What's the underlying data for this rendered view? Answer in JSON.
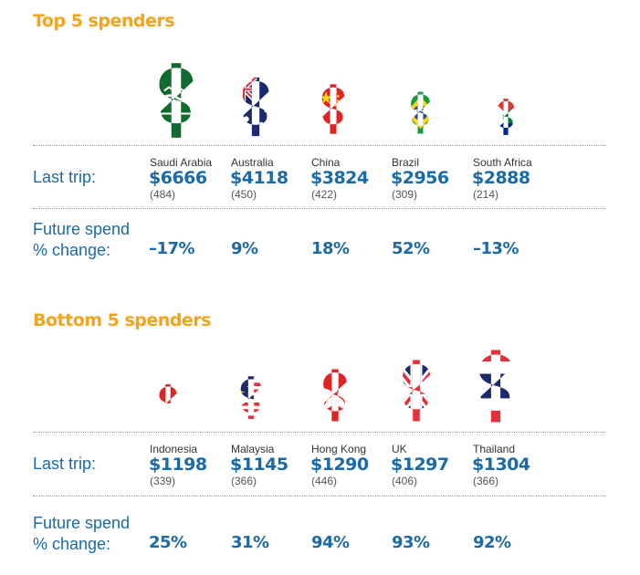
{
  "chart_data": [
    {
      "type": "table",
      "title": "Top 5 spenders",
      "row_labels": {
        "last_trip": "Last trip:",
        "future_line1": "Future spend",
        "future_line2": "% change:"
      },
      "items": [
        {
          "country": "Saudi Arabia",
          "amount": "$6666",
          "value": 6666,
          "count": "(484)",
          "change": "–17%",
          "flag_icon": "saudi-arabia-flag-dollar-icon",
          "colors": [
            "#0f6b2e",
            "#ffffff"
          ]
        },
        {
          "country": "Australia",
          "amount": "$4118",
          "value": 4118,
          "count": "(450)",
          "change": "9%",
          "flag_icon": "australia-flag-dollar-icon",
          "colors": [
            "#1a2a6c",
            "#e0313c",
            "#ffffff"
          ]
        },
        {
          "country": "China",
          "amount": "$3824",
          "value": 3824,
          "count": "(422)",
          "change": "18%",
          "flag_icon": "china-flag-dollar-icon",
          "colors": [
            "#e02424",
            "#ffde00"
          ]
        },
        {
          "country": "Brazil",
          "amount": "$2956",
          "value": 2956,
          "count": "(309)",
          "change": "52%",
          "flag_icon": "brazil-flag-dollar-icon",
          "colors": [
            "#179b3c",
            "#ffd21f",
            "#2c4e9e"
          ]
        },
        {
          "country": "South Africa",
          "amount": "$2888",
          "value": 2888,
          "count": "(214)",
          "change": "–13%",
          "flag_icon": "south-africa-flag-dollar-icon",
          "colors": [
            "#007a3d",
            "#de3831",
            "#002395",
            "#ffb612",
            "#000000"
          ]
        }
      ]
    },
    {
      "type": "table",
      "title": "Bottom 5 spenders",
      "row_labels": {
        "last_trip": "Last trip:",
        "future_line1": "Future spend",
        "future_line2": "% change:"
      },
      "items": [
        {
          "country": "Indonesia",
          "amount": "$1198",
          "value": 1198,
          "count": "(339)",
          "change": "25%",
          "flag_icon": "indonesia-flag-dollar-icon",
          "colors": [
            "#e02424",
            "#ffffff"
          ]
        },
        {
          "country": "Malaysia",
          "amount": "$1145",
          "value": 1145,
          "count": "(366)",
          "change": "31%",
          "flag_icon": "malaysia-flag-dollar-icon",
          "colors": [
            "#1a2a6c",
            "#e0313c",
            "#ffd21f",
            "#ffffff"
          ]
        },
        {
          "country": "Hong Kong",
          "amount": "$1290",
          "value": 1290,
          "count": "(446)",
          "change": "94%",
          "flag_icon": "hong-kong-flag-dollar-icon",
          "colors": [
            "#e02424",
            "#ffffff"
          ]
        },
        {
          "country": "UK",
          "amount": "$1297",
          "value": 1297,
          "count": "(406)",
          "change": "93%",
          "flag_icon": "uk-flag-dollar-icon",
          "colors": [
            "#1a2a6c",
            "#e0313c",
            "#ffffff"
          ]
        },
        {
          "country": "Thailand",
          "amount": "$1304",
          "value": 1304,
          "count": "(366)",
          "change": "92%",
          "flag_icon": "thailand-flag-dollar-icon",
          "colors": [
            "#e0313c",
            "#ffffff",
            "#1a2a6c"
          ]
        }
      ]
    }
  ]
}
